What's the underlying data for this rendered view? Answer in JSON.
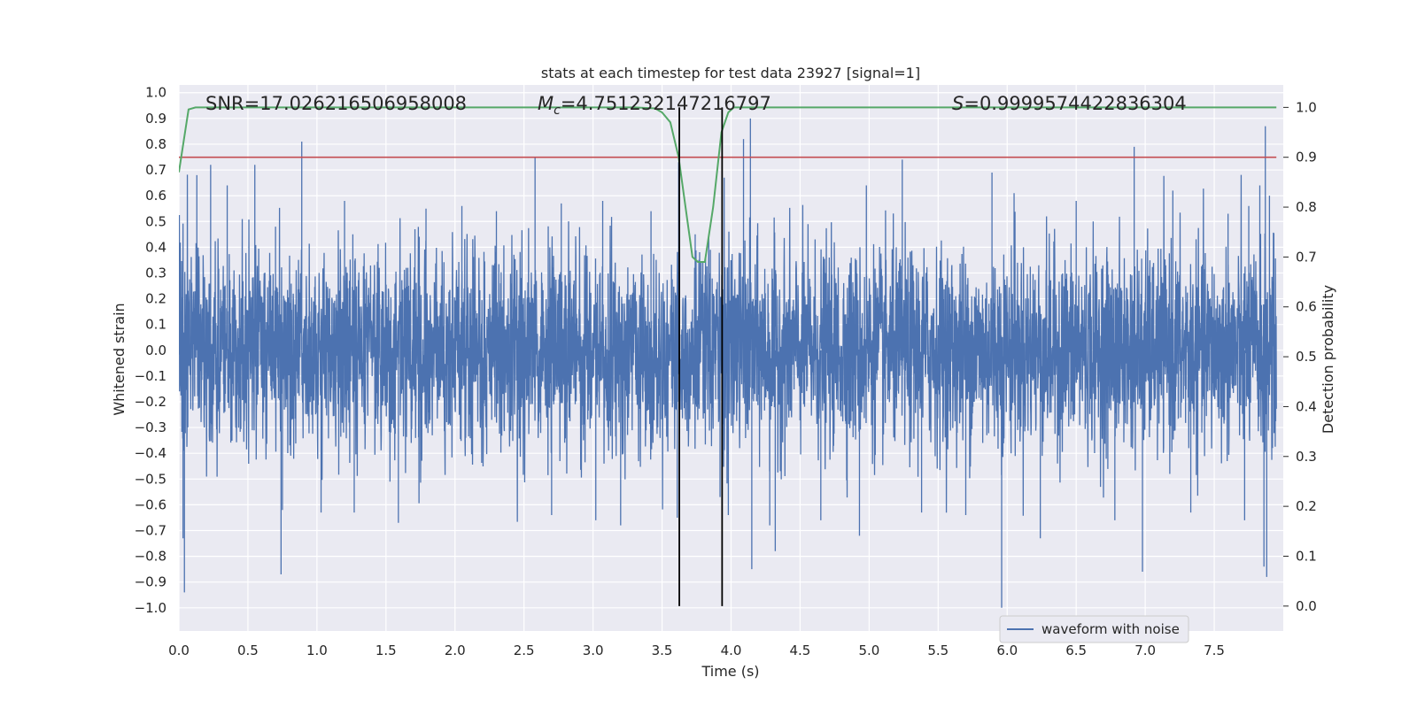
{
  "chart_data": {
    "type": "line",
    "title": "stats at each timestep for test data 23927 [signal=1]",
    "xlabel": "Time (s)",
    "ylabel": "Whitened strain",
    "y2label": "Detection probability",
    "xlim": [
      0.0,
      8.0
    ],
    "ylim": [
      -1.09,
      1.03
    ],
    "y2lim": [
      -0.05,
      1.045
    ],
    "grid": true,
    "legend": {
      "placement": "lower-right",
      "entries": [
        "waveform with noise"
      ]
    },
    "x_ticks": [
      "0.0",
      "0.5",
      "1.0",
      "1.5",
      "2.0",
      "2.5",
      "3.0",
      "3.5",
      "4.0",
      "4.5",
      "5.0",
      "5.5",
      "6.0",
      "6.5",
      "7.0",
      "7.5"
    ],
    "y_ticks": [
      "1.0",
      "0.9",
      "0.8",
      "0.7",
      "0.6",
      "0.5",
      "0.4",
      "0.3",
      "0.2",
      "0.1",
      "0.0",
      "−0.1",
      "−0.2",
      "−0.3",
      "−0.4",
      "−0.5",
      "−0.6",
      "−0.7",
      "−0.8",
      "−0.9",
      "−1.0"
    ],
    "y2_ticks": [
      "1.0",
      "0.9",
      "0.8",
      "0.7",
      "0.6",
      "0.5",
      "0.4",
      "0.3",
      "0.2",
      "0.1",
      "0.0"
    ],
    "annotations": {
      "snr": "SNR=17.026216506958008",
      "mc_symbol": "M",
      "mc_sub": "c",
      "mc_value": "=4.751232147216797",
      "s_symbol": "S",
      "s_value": "=0.9999574422836304"
    },
    "series": [
      {
        "name": "waveform with noise",
        "color": "#4c72b0",
        "axis": "left",
        "noise_std": 0.19,
        "spikes": [
          [
            0.04,
            -0.94
          ],
          [
            0.03,
            -0.73
          ],
          [
            0.13,
            0.68
          ],
          [
            0.23,
            0.72
          ],
          [
            0.35,
            0.64
          ],
          [
            0.55,
            0.72
          ],
          [
            0.7,
            0.48
          ],
          [
            0.74,
            -0.87
          ],
          [
            0.75,
            -0.62
          ],
          [
            0.89,
            0.81
          ],
          [
            1.03,
            -0.63
          ],
          [
            1.2,
            0.58
          ],
          [
            1.26,
            0.45
          ],
          [
            1.27,
            -0.63
          ],
          [
            1.59,
            -0.67
          ],
          [
            1.71,
            0.47
          ],
          [
            1.79,
            0.55
          ],
          [
            2.05,
            0.56
          ],
          [
            2.3,
            0.54
          ],
          [
            2.58,
            0.75
          ],
          [
            2.7,
            -0.64
          ],
          [
            2.77,
            0.57
          ],
          [
            3.02,
            -0.66
          ],
          [
            3.07,
            0.58
          ],
          [
            3.2,
            -0.68
          ],
          [
            3.42,
            0.54
          ],
          [
            3.62,
            0.73
          ],
          [
            3.61,
            -0.65
          ],
          [
            3.74,
            0.45
          ],
          [
            3.85,
            0.39
          ],
          [
            3.92,
            -0.57
          ],
          [
            3.95,
            0.67
          ],
          [
            3.98,
            -0.64
          ],
          [
            4.09,
            0.82
          ],
          [
            4.14,
            0.9
          ],
          [
            4.15,
            -0.85
          ],
          [
            4.28,
            -0.68
          ],
          [
            4.32,
            -0.78
          ],
          [
            4.65,
            -0.66
          ],
          [
            4.93,
            -0.72
          ],
          [
            4.98,
            0.64
          ],
          [
            5.24,
            0.74
          ],
          [
            5.38,
            -0.63
          ],
          [
            5.7,
            -0.64
          ],
          [
            5.89,
            0.69
          ],
          [
            5.96,
            -1.0
          ],
          [
            6.05,
            0.61
          ],
          [
            6.24,
            -0.73
          ],
          [
            6.5,
            0.58
          ],
          [
            6.78,
            -0.66
          ],
          [
            6.92,
            0.79
          ],
          [
            6.98,
            -0.86
          ],
          [
            7.2,
            0.62
          ],
          [
            7.33,
            -0.63
          ],
          [
            7.6,
            0.53
          ],
          [
            7.72,
            -0.66
          ],
          [
            7.86,
            -0.84
          ],
          [
            7.87,
            0.87
          ],
          [
            7.88,
            -0.88
          ],
          [
            7.9,
            0.6
          ],
          [
            7.83,
            0.64
          ],
          [
            7.75,
            0.56
          ]
        ]
      },
      {
        "name": "",
        "color": "#55a868",
        "axis": "right",
        "x": [
          0.0,
          0.07,
          0.12,
          0.5,
          1.0,
          2.0,
          3.0,
          3.3,
          3.45,
          3.5,
          3.56,
          3.62,
          3.67,
          3.72,
          3.76,
          3.81,
          3.87,
          3.93,
          3.98,
          4.02,
          4.1,
          5.0,
          6.0,
          7.0,
          7.95
        ],
        "y": [
          0.87,
          0.996,
          1.0,
          1.0,
          1.0,
          1.0,
          1.0,
          1.0,
          0.998,
          0.99,
          0.97,
          0.9,
          0.8,
          0.7,
          0.69,
          0.69,
          0.8,
          0.95,
          0.99,
          1.0,
          1.0,
          1.0,
          1.0,
          1.0,
          1.0
        ]
      },
      {
        "name": "",
        "color": "#c44e52",
        "axis": "right",
        "x": [
          0.0,
          7.95
        ],
        "y": [
          0.9,
          0.9
        ]
      }
    ],
    "vlines": [
      3.625,
      3.935
    ]
  }
}
